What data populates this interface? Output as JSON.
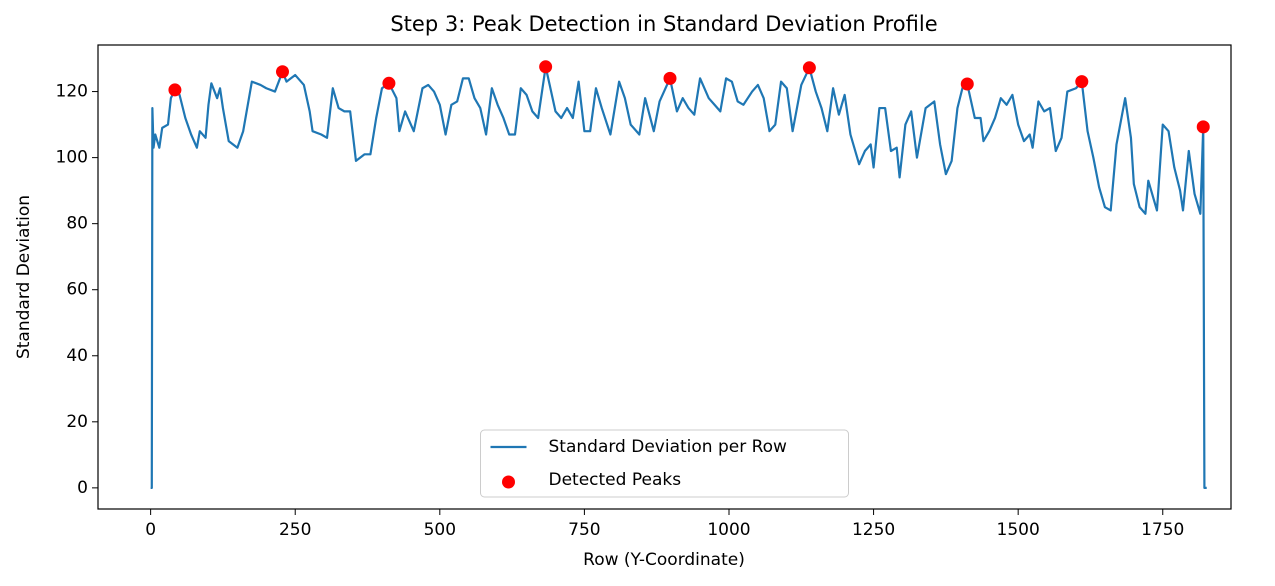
{
  "chart_data": {
    "type": "line",
    "title": "Step 3: Peak Detection in Standard Deviation Profile",
    "x_label": "Row (Y-Coordinate)",
    "y_label": "Standard Deviation",
    "xlim": [
      -91,
      1868
    ],
    "ylim": [
      -6.4,
      134.1
    ],
    "xticks": [
      0,
      250,
      500,
      750,
      1000,
      1250,
      1500,
      1750
    ],
    "yticks": [
      0,
      20,
      40,
      60,
      80,
      100,
      120
    ],
    "grid": false,
    "legend": "lower center",
    "series": [
      {
        "name": "Standard Deviation per Row",
        "type": "line",
        "color": "#1f77b4",
        "x": [
          0,
          2,
          3,
          5,
          8,
          15,
          20,
          30,
          35,
          42,
          50,
          60,
          70,
          80,
          85,
          95,
          100,
          105,
          115,
          120,
          125,
          135,
          150,
          160,
          170,
          175,
          190,
          200,
          215,
          228,
          235,
          250,
          265,
          275,
          280,
          295,
          305,
          315,
          325,
          335,
          345,
          355,
          370,
          380,
          390,
          400,
          412,
          425,
          430,
          440,
          455,
          470,
          480,
          490,
          500,
          510,
          520,
          530,
          540,
          550,
          560,
          570,
          580,
          590,
          600,
          610,
          620,
          630,
          640,
          650,
          660,
          670,
          683,
          690,
          700,
          710,
          720,
          730,
          740,
          750,
          760,
          770,
          780,
          795,
          810,
          820,
          830,
          845,
          855,
          870,
          880,
          898,
          910,
          920,
          930,
          940,
          950,
          965,
          975,
          985,
          995,
          1005,
          1015,
          1025,
          1040,
          1050,
          1060,
          1070,
          1080,
          1090,
          1100,
          1110,
          1125,
          1139,
          1150,
          1160,
          1170,
          1180,
          1190,
          1200,
          1210,
          1220,
          1225,
          1235,
          1245,
          1250,
          1260,
          1270,
          1280,
          1290,
          1295,
          1305,
          1315,
          1325,
          1340,
          1355,
          1365,
          1375,
          1385,
          1395,
          1405,
          1412,
          1425,
          1435,
          1440,
          1450,
          1460,
          1470,
          1480,
          1490,
          1500,
          1510,
          1520,
          1525,
          1535,
          1545,
          1555,
          1565,
          1575,
          1585,
          1600,
          1610,
          1620,
          1630,
          1640,
          1650,
          1660,
          1670,
          1685,
          1695,
          1700,
          1710,
          1720,
          1725,
          1740,
          1750,
          1760,
          1770,
          1780,
          1785,
          1795,
          1805,
          1815,
          1820,
          1822,
          1826
        ],
        "values": [
          0,
          0,
          115,
          103,
          107,
          103,
          109,
          110,
          118,
          120.5,
          119,
          112,
          107,
          103,
          108,
          106,
          116,
          122.5,
          118,
          121,
          115,
          105,
          103,
          108,
          118,
          123,
          122,
          121,
          120,
          126,
          123,
          125,
          122,
          114,
          108,
          107,
          106,
          121,
          115,
          114,
          114,
          99,
          101,
          101,
          112,
          121,
          122.5,
          118,
          108,
          114,
          108,
          121,
          122,
          120,
          116,
          107,
          116,
          117,
          124,
          124,
          118,
          115,
          107,
          121,
          116,
          112,
          107,
          107,
          121,
          119,
          114,
          112,
          127.5,
          122,
          114,
          112,
          115,
          112,
          123,
          108,
          108,
          121,
          115,
          107,
          123,
          118,
          110,
          107,
          118,
          108,
          117,
          124,
          114,
          118,
          115,
          113,
          124,
          118,
          116,
          114,
          124,
          123,
          117,
          116,
          120,
          122,
          118,
          108,
          110,
          123,
          121,
          108,
          122,
          127.2,
          120,
          115,
          108,
          121,
          113,
          119,
          107,
          101,
          98,
          102,
          104,
          97,
          115,
          115,
          102,
          103,
          94,
          110,
          114,
          100,
          115,
          117,
          104,
          95,
          99,
          115,
          122,
          122.3,
          112,
          112,
          105,
          108,
          112,
          118,
          116,
          119,
          110,
          105,
          107,
          103,
          117,
          114,
          115,
          102,
          106,
          120,
          121,
          123,
          108,
          100,
          91,
          85,
          84,
          104,
          118,
          106,
          92,
          85,
          83,
          93,
          84,
          110,
          108,
          97,
          90,
          84,
          102,
          89,
          83,
          109.3,
          0,
          0
        ]
      },
      {
        "name": "Detected Peaks",
        "type": "scatter",
        "color": "#ff0000",
        "x": [
          42,
          228,
          412,
          683,
          898,
          1139,
          1412,
          1610,
          1820
        ],
        "values": [
          120.5,
          126,
          122.5,
          127.5,
          124,
          127.2,
          122.3,
          123,
          109.3
        ]
      }
    ]
  }
}
